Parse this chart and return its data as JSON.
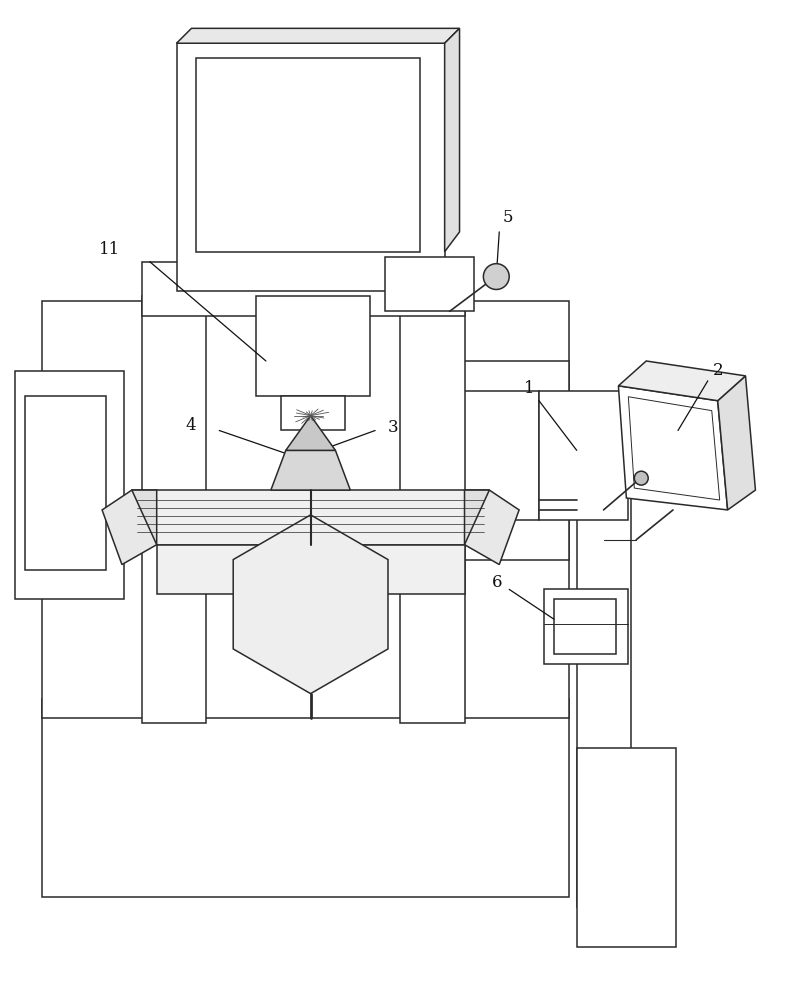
{
  "bg_color": "#ffffff",
  "lc": "#2a2a2a",
  "lw": 1.1,
  "fig_width": 7.9,
  "fig_height": 10.0,
  "label_fontsize": 12
}
